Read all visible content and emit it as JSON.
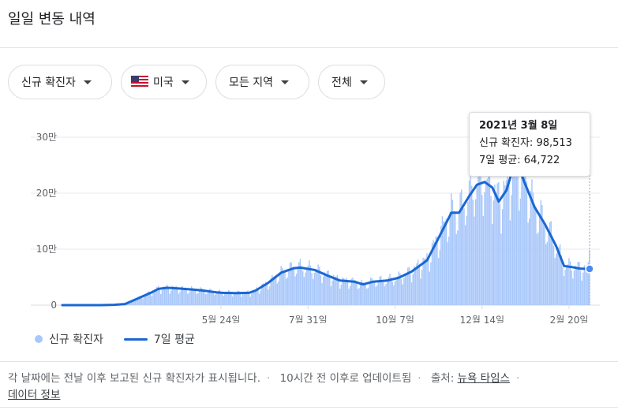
{
  "header": {
    "title": "일일 변동 내역"
  },
  "filters": [
    {
      "label": "신규 확진자",
      "flag": false
    },
    {
      "label": "미국",
      "flag": true
    },
    {
      "label": "모든 지역",
      "flag": false
    },
    {
      "label": "전체",
      "flag": false
    }
  ],
  "colors": {
    "bar": "#a8c7fa",
    "line": "#1a67d2",
    "grid": "#e8eaed"
  },
  "tooltip": {
    "date": "2021년 3월 8일",
    "cases_label": "신규 확진자: 98,513",
    "avg_label": "7일 평균: 64,722"
  },
  "legend": {
    "bar_label": "신규 확진자",
    "line_label": "7일 평균"
  },
  "footer": {
    "note": "각 날짜에는 전날 이후 보고된 신규 확진자가 표시됩니다.",
    "updated": "10시간 전 이후로 업데이트됨",
    "source_label": "출처:",
    "source_link": "뉴욕 타임스",
    "data_info": "데이터 정보"
  },
  "chart_data": {
    "type": "bar",
    "title": "",
    "xlabel": "",
    "ylabel": "",
    "ylim": [
      0,
      300000
    ],
    "y_ticks": [
      0,
      100000,
      200000,
      300000
    ],
    "y_tick_labels": [
      "0",
      "10만",
      "20만",
      "30만"
    ],
    "x_tick_labels": [
      "5월 24일",
      "7월 31일",
      "10월 7일",
      "12월 14일",
      "2월 20일"
    ],
    "x_tick_dates": [
      "2020-05-24",
      "2020-07-31",
      "2020-10-07",
      "2020-12-14",
      "2021-02-20"
    ],
    "x_range": [
      "2020-01-21",
      "2021-03-08"
    ],
    "grid": true,
    "legend_position": "bottom-left",
    "series": [
      {
        "name": "7일 평균",
        "type": "line",
        "points": [
          [
            "2020-01-21",
            0
          ],
          [
            "2020-02-20",
            0
          ],
          [
            "2020-03-01",
            500
          ],
          [
            "2020-03-10",
            2000
          ],
          [
            "2020-03-20",
            12000
          ],
          [
            "2020-03-30",
            22000
          ],
          [
            "2020-04-05",
            29000
          ],
          [
            "2020-04-12",
            31000
          ],
          [
            "2020-04-20",
            30000
          ],
          [
            "2020-05-01",
            28000
          ],
          [
            "2020-05-10",
            26000
          ],
          [
            "2020-05-20",
            23000
          ],
          [
            "2020-05-25",
            22000
          ],
          [
            "2020-06-05",
            21500
          ],
          [
            "2020-06-15",
            22000
          ],
          [
            "2020-06-20",
            26000
          ],
          [
            "2020-06-30",
            40000
          ],
          [
            "2020-07-10",
            58000
          ],
          [
            "2020-07-20",
            66000
          ],
          [
            "2020-07-25",
            67000
          ],
          [
            "2020-08-05",
            63000
          ],
          [
            "2020-08-15",
            53000
          ],
          [
            "2020-08-25",
            44000
          ],
          [
            "2020-09-05",
            42000
          ],
          [
            "2020-09-12",
            37000
          ],
          [
            "2020-09-20",
            42000
          ],
          [
            "2020-10-01",
            44000
          ],
          [
            "2020-10-10",
            49000
          ],
          [
            "2020-10-20",
            60000
          ],
          [
            "2020-11-01",
            80000
          ],
          [
            "2020-11-10",
            120000
          ],
          [
            "2020-11-20",
            165000
          ],
          [
            "2020-11-26",
            165000
          ],
          [
            "2020-12-04",
            195000
          ],
          [
            "2020-12-10",
            215000
          ],
          [
            "2020-12-16",
            220000
          ],
          [
            "2020-12-22",
            210000
          ],
          [
            "2020-12-27",
            185000
          ],
          [
            "2021-01-02",
            205000
          ],
          [
            "2021-01-08",
            250000
          ],
          [
            "2021-01-12",
            245000
          ],
          [
            "2021-01-16",
            220000
          ],
          [
            "2021-01-24",
            175000
          ],
          [
            "2021-02-01",
            145000
          ],
          [
            "2021-02-10",
            105000
          ],
          [
            "2021-02-16",
            70000
          ],
          [
            "2021-02-22",
            68000
          ],
          [
            "2021-03-01",
            65000
          ],
          [
            "2021-03-08",
            64722
          ]
        ]
      },
      {
        "name": "신규 확진자",
        "type": "bar",
        "highlight": {
          "date": "2021-03-08",
          "value": 98513
        }
      }
    ]
  }
}
